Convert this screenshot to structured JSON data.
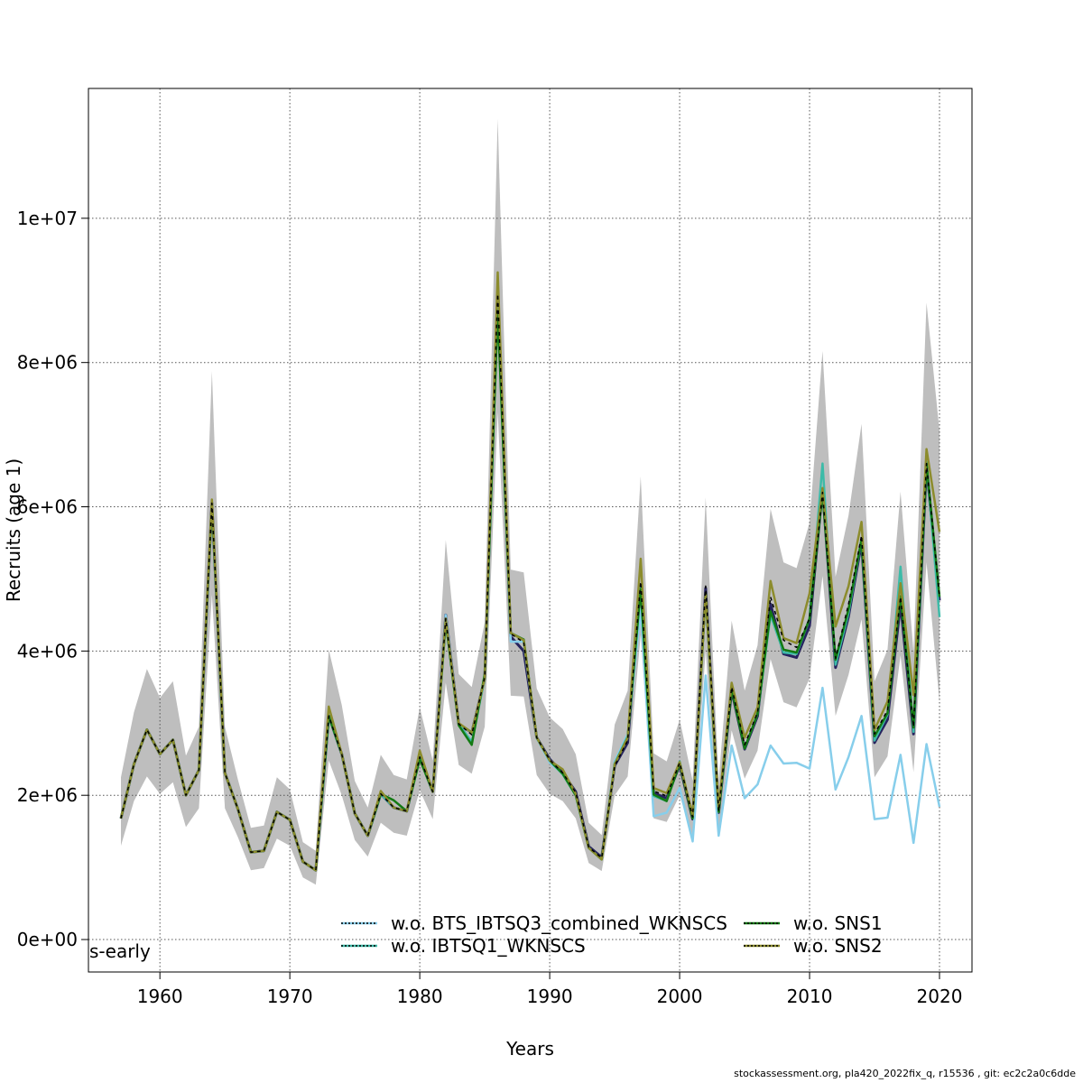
{
  "chart_data": {
    "type": "line",
    "xlabel": "Years",
    "ylabel": "Recruits (age 1)",
    "xlim": [
      1954.5,
      2022.5
    ],
    "ylim": [
      -450000,
      11800000
    ],
    "xticks": [
      1960,
      1970,
      1980,
      1990,
      2000,
      2010,
      2020
    ],
    "yticks": [
      0,
      2000000,
      4000000,
      6000000,
      8000000,
      10000000
    ],
    "ytick_labels": [
      "0e+00",
      "2e+06",
      "4e+06",
      "6e+06",
      "8e+06",
      "1e+07"
    ],
    "grid": true,
    "annotation": "s-early",
    "legend_placement": "bottom-center",
    "years": [
      1957,
      1958,
      1959,
      1960,
      1961,
      1962,
      1963,
      1964,
      1965,
      1966,
      1967,
      1968,
      1969,
      1970,
      1971,
      1972,
      1973,
      1974,
      1975,
      1976,
      1977,
      1978,
      1979,
      1980,
      1981,
      1982,
      1983,
      1984,
      1985,
      1986,
      1987,
      1988,
      1989,
      1990,
      1991,
      1992,
      1993,
      1994,
      1995,
      1996,
      1997,
      1998,
      1999,
      2000,
      2001,
      2002,
      2003,
      2004,
      2005,
      2006,
      2007,
      2008,
      2009,
      2010,
      2011,
      2012,
      2013,
      2014,
      2015,
      2016,
      2017,
      2018,
      2019,
      2020
    ],
    "ci_upper": [
      2250000,
      3150000,
      3750000,
      3350000,
      3580000,
      2550000,
      2950000,
      7880000,
      2950000,
      2220000,
      1550000,
      1580000,
      2250000,
      2080000,
      1350000,
      1230000,
      4020000,
      3250000,
      2200000,
      1830000,
      2560000,
      2280000,
      2220000,
      3220000,
      2480000,
      5540000,
      3680000,
      3500000,
      4400000,
      11380000,
      5130000,
      5090000,
      3480000,
      3080000,
      2920000,
      2570000,
      1620000,
      1450000,
      2980000,
      3450000,
      6420000,
      2580000,
      2470000,
      3050000,
      2200000,
      6130000,
      2200000,
      4420000,
      3450000,
      4080000,
      5970000,
      5230000,
      5150000,
      5780000,
      8160000,
      5030000,
      5880000,
      7150000,
      3580000,
      4020000,
      6210000,
      3990000,
      8830000,
      7050000
    ],
    "ci_lower": [
      1300000,
      1920000,
      2260000,
      2020000,
      2180000,
      1560000,
      1820000,
      4780000,
      1820000,
      1420000,
      960000,
      990000,
      1400000,
      1300000,
      860000,
      760000,
      2480000,
      2000000,
      1380000,
      1150000,
      1620000,
      1480000,
      1440000,
      2070000,
      1670000,
      3560000,
      2420000,
      2300000,
      2950000,
      7310000,
      3380000,
      3370000,
      2280000,
      2020000,
      1920000,
      1680000,
      1060000,
      950000,
      2000000,
      2260000,
      4220000,
      1680000,
      1630000,
      2000000,
      1430000,
      4010000,
      1450000,
      2900000,
      2230000,
      2620000,
      3890000,
      3290000,
      3220000,
      3620000,
      5040000,
      3100000,
      3670000,
      4440000,
      2250000,
      2540000,
      3940000,
      2320000,
      5230000,
      3300000
    ],
    "series": [
      {
        "name": "",
        "color": "#26235e",
        "dash": "none",
        "width": 3,
        "values": [
          1680000,
          2430000,
          2910000,
          2570000,
          2770000,
          2000000,
          2350000,
          6050000,
          2310000,
          1810000,
          1210000,
          1230000,
          1770000,
          1660000,
          1080000,
          960000,
          3100000,
          2570000,
          1750000,
          1440000,
          2020000,
          1830000,
          1780000,
          2530000,
          2050000,
          4500000,
          2990000,
          2870000,
          3620000,
          9000000,
          4200000,
          4000000,
          2800000,
          2500000,
          2310000,
          2050000,
          1290000,
          1140000,
          2410000,
          2730000,
          4900000,
          2030000,
          1960000,
          2420000,
          1670000,
          4870000,
          1760000,
          3450000,
          2640000,
          3100000,
          4650000,
          3960000,
          3910000,
          4350000,
          6250000,
          3770000,
          4480000,
          5500000,
          2730000,
          3050000,
          4650000,
          2850000,
          6550000,
          4700000
        ]
      },
      {
        "name": "w.o. BTS_IBTSQ3_combined_WKNSCS",
        "color": "#87ceeb",
        "dash": "none",
        "width": 2.5,
        "values": [
          1680000,
          2430000,
          2910000,
          2570000,
          2770000,
          2000000,
          2350000,
          6050000,
          2310000,
          1810000,
          1210000,
          1230000,
          1770000,
          1660000,
          1080000,
          960000,
          3100000,
          2570000,
          1750000,
          1440000,
          2020000,
          1830000,
          1780000,
          2530000,
          2050000,
          4500000,
          2990000,
          2870000,
          3620000,
          9000000,
          4130000,
          4130000,
          2790000,
          2450000,
          2300000,
          2000000,
          1270000,
          1110000,
          2470000,
          2850000,
          4580000,
          1710000,
          1760000,
          2100000,
          1360000,
          3660000,
          1440000,
          2690000,
          1960000,
          2150000,
          2690000,
          2440000,
          2450000,
          2370000,
          3490000,
          2080000,
          2530000,
          3100000,
          1670000,
          1690000,
          2560000,
          1340000,
          2710000,
          1840000
        ]
      },
      {
        "name": "w.o. IBTSQ1_WKNSCS",
        "color": "#3dbba8",
        "dash": "none",
        "width": 2.5,
        "values": [
          1680000,
          2430000,
          2910000,
          2570000,
          2770000,
          2000000,
          2350000,
          6050000,
          2310000,
          1810000,
          1210000,
          1230000,
          1770000,
          1660000,
          1080000,
          960000,
          3100000,
          2570000,
          1750000,
          1440000,
          2020000,
          1830000,
          1780000,
          2530000,
          2050000,
          4400000,
          2990000,
          2740000,
          3620000,
          8800000,
          4250000,
          4150000,
          2800000,
          2480000,
          2290000,
          2000000,
          1270000,
          1110000,
          2440000,
          2820000,
          4880000,
          1990000,
          1920000,
          2470000,
          1690000,
          4800000,
          1770000,
          3490000,
          2650000,
          3130000,
          4500000,
          3980000,
          3960000,
          4450000,
          6600000,
          3810000,
          4530000,
          5550000,
          2760000,
          3120000,
          5170000,
          2880000,
          6620000,
          4470000
        ]
      },
      {
        "name": "w.o. SNS1",
        "color": "#137a13",
        "dash": "none",
        "width": 2.5,
        "values": [
          1680000,
          2430000,
          2910000,
          2570000,
          2770000,
          2000000,
          2350000,
          6050000,
          2310000,
          1810000,
          1210000,
          1230000,
          1770000,
          1660000,
          1080000,
          960000,
          3100000,
          2570000,
          1750000,
          1440000,
          2020000,
          1930000,
          1780000,
          2500000,
          2050000,
          4400000,
          2970000,
          2700000,
          3680000,
          8700000,
          4250000,
          4160000,
          2800000,
          2480000,
          2300000,
          2000000,
          1270000,
          1110000,
          2430000,
          2800000,
          4860000,
          2010000,
          1920000,
          2440000,
          1680000,
          4800000,
          1770000,
          3470000,
          2650000,
          3130000,
          4550000,
          4020000,
          3980000,
          4450000,
          6200000,
          3880000,
          4580000,
          5550000,
          2820000,
          3140000,
          4760000,
          2940000,
          6600000,
          4750000
        ]
      },
      {
        "name": "w.o. SNS2",
        "color": "#8c8c2c",
        "dash": "none",
        "width": 2.5,
        "values": [
          1680000,
          2430000,
          2910000,
          2570000,
          2770000,
          2000000,
          2350000,
          6100000,
          2310000,
          1810000,
          1210000,
          1230000,
          1770000,
          1660000,
          1080000,
          960000,
          3230000,
          2570000,
          1750000,
          1440000,
          2060000,
          1830000,
          1780000,
          2620000,
          2050000,
          4450000,
          3000000,
          2870000,
          3620000,
          9250000,
          4250000,
          4150000,
          2800000,
          2480000,
          2360000,
          2020000,
          1270000,
          1110000,
          2430000,
          2800000,
          5280000,
          2100000,
          2030000,
          2460000,
          1720000,
          4800000,
          1830000,
          3560000,
          2800000,
          3220000,
          4970000,
          4180000,
          4110000,
          4800000,
          6260000,
          4340000,
          4900000,
          5790000,
          2910000,
          3300000,
          4940000,
          3390000,
          6800000,
          5650000
        ]
      },
      {
        "name": "",
        "color": "#000000",
        "dash": "4,4",
        "width": 1.5,
        "values": [
          1680000,
          2430000,
          2910000,
          2570000,
          2770000,
          2000000,
          2350000,
          6050000,
          2310000,
          1810000,
          1210000,
          1230000,
          1770000,
          1660000,
          1080000,
          960000,
          3100000,
          2570000,
          1750000,
          1440000,
          2020000,
          1830000,
          1780000,
          2530000,
          2050000,
          4450000,
          2990000,
          2840000,
          3640000,
          8950000,
          4240000,
          4120000,
          2800000,
          2490000,
          2310000,
          2040000,
          1280000,
          1130000,
          2410000,
          2760000,
          4960000,
          2060000,
          1990000,
          2450000,
          1700000,
          4900000,
          1780000,
          3500000,
          2700000,
          3150000,
          4750000,
          4150000,
          4050000,
          4450000,
          6200000,
          3900000,
          4650000,
          5600000,
          2850000,
          3180000,
          4750000,
          2950000,
          6600000,
          4750000
        ]
      }
    ],
    "legend": [
      {
        "label": "w.o. BTS_IBTSQ3_combined_WKNSCS",
        "color": "#87ceeb"
      },
      {
        "label": "w.o. IBTSQ1_WKNSCS",
        "color": "#3dbba8"
      },
      {
        "label": "w.o. SNS1",
        "color": "#137a13"
      },
      {
        "label": "w.o. SNS2",
        "color": "#8c8c2c"
      }
    ]
  },
  "footer": "stockassessment.org, pla420_2022fix_q, r15536 , git: ec2c2a0c6dde"
}
